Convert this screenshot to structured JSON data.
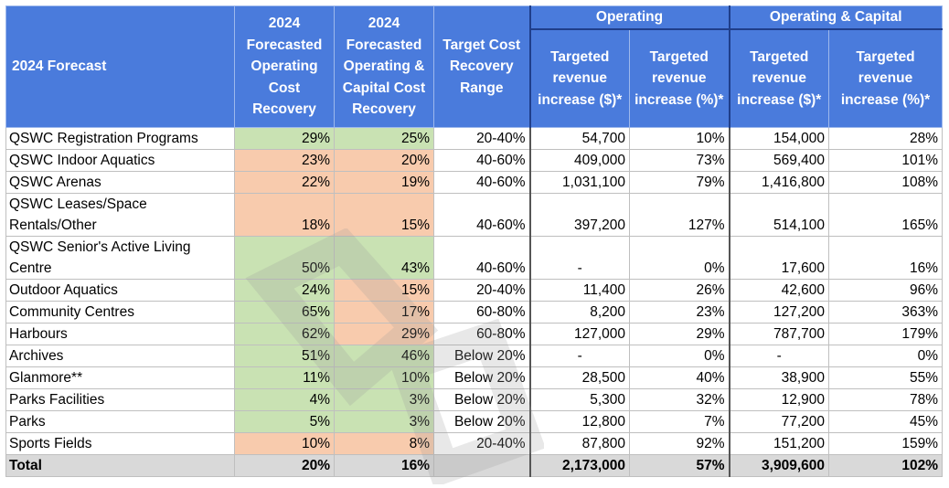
{
  "headers": {
    "forecast": "2024 Forecast",
    "op_cost_recovery": [
      "2024",
      "Forecasted",
      "Operating",
      "Cost",
      "Recovery"
    ],
    "opcap_cost_recovery": [
      "2024",
      "Forecasted",
      "Operating &",
      "Capital Cost",
      "Recovery"
    ],
    "target_range": [
      "Target Cost",
      "Recovery",
      "Range"
    ],
    "group_operating": "Operating",
    "group_opcap": "Operating & Capital",
    "rev_dollar": [
      "Targeted",
      "revenue",
      "increase ($)*"
    ],
    "rev_pct": [
      "Targeted",
      "revenue",
      "increase (%)*"
    ]
  },
  "rows": [
    {
      "name": [
        "QSWC Registration Programs"
      ],
      "op": "29%",
      "op_fill": "green",
      "opcap": "25%",
      "opcap_fill": "green",
      "range": "20-40%",
      "op_rev": "54,700",
      "op_pct": "10%",
      "cap_rev": "154,000",
      "cap_pct": "28%"
    },
    {
      "name": [
        "QSWC Indoor Aquatics"
      ],
      "op": "23%",
      "op_fill": "orange",
      "opcap": "20%",
      "opcap_fill": "orange",
      "range": "40-60%",
      "op_rev": "409,000",
      "op_pct": "73%",
      "cap_rev": "569,400",
      "cap_pct": "101%"
    },
    {
      "name": [
        "QSWC Arenas"
      ],
      "op": "22%",
      "op_fill": "orange",
      "opcap": "19%",
      "opcap_fill": "orange",
      "range": "40-60%",
      "op_rev": "1,031,100",
      "op_pct": "79%",
      "cap_rev": "1,416,800",
      "cap_pct": "108%"
    },
    {
      "name": [
        "QSWC Leases/Space",
        "Rentals/Other"
      ],
      "op": "18%",
      "op_fill": "orange",
      "opcap": "15%",
      "opcap_fill": "orange",
      "range": "40-60%",
      "op_rev": "397,200",
      "op_pct": "127%",
      "cap_rev": "514,100",
      "cap_pct": "165%"
    },
    {
      "name": [
        "QSWC Senior's Active Living",
        "Centre"
      ],
      "op": "50%",
      "op_fill": "green",
      "opcap": "43%",
      "opcap_fill": "green",
      "range": "40-60%",
      "op_rev": "-",
      "op_pct": "0%",
      "cap_rev": "17,600",
      "cap_pct": "16%"
    },
    {
      "name": [
        "Outdoor Aquatics"
      ],
      "op": "24%",
      "op_fill": "green",
      "opcap": "15%",
      "opcap_fill": "orange",
      "range": "20-40%",
      "op_rev": "11,400",
      "op_pct": "26%",
      "cap_rev": "42,600",
      "cap_pct": "96%"
    },
    {
      "name": [
        "Community Centres"
      ],
      "op": "65%",
      "op_fill": "green",
      "opcap": "17%",
      "opcap_fill": "orange",
      "range": "60-80%",
      "op_rev": "8,200",
      "op_pct": "23%",
      "cap_rev": "127,200",
      "cap_pct": "363%"
    },
    {
      "name": [
        "Harbours"
      ],
      "op": "62%",
      "op_fill": "green",
      "opcap": "29%",
      "opcap_fill": "orange",
      "range": "60-80%",
      "op_rev": "127,000",
      "op_pct": "29%",
      "cap_rev": "787,700",
      "cap_pct": "179%"
    },
    {
      "name": [
        "Archives"
      ],
      "op": "51%",
      "op_fill": "green",
      "opcap": "46%",
      "opcap_fill": "green",
      "range": "Below 20%",
      "op_rev": "-",
      "op_pct": "0%",
      "cap_rev": "-",
      "cap_pct": "0%"
    },
    {
      "name": [
        "Glanmore**"
      ],
      "op": "11%",
      "op_fill": "green",
      "opcap": "10%",
      "opcap_fill": "green",
      "range": "Below 20%",
      "op_rev": "28,500",
      "op_pct": "40%",
      "cap_rev": "38,900",
      "cap_pct": "55%"
    },
    {
      "name": [
        "Parks Facilities"
      ],
      "op": "4%",
      "op_fill": "green",
      "opcap": "3%",
      "opcap_fill": "green",
      "range": "Below 20%",
      "op_rev": "5,300",
      "op_pct": "32%",
      "cap_rev": "12,900",
      "cap_pct": "78%"
    },
    {
      "name": [
        "Parks"
      ],
      "op": "5%",
      "op_fill": "green",
      "opcap": "3%",
      "opcap_fill": "green",
      "range": "Below 20%",
      "op_rev": "12,800",
      "op_pct": "7%",
      "cap_rev": "77,200",
      "cap_pct": "45%"
    },
    {
      "name": [
        "Sports Fields"
      ],
      "op": "10%",
      "op_fill": "orange",
      "opcap": "8%",
      "opcap_fill": "orange",
      "range": "20-40%",
      "op_rev": "87,800",
      "op_pct": "92%",
      "cap_rev": "151,200",
      "cap_pct": "159%"
    }
  ],
  "total": {
    "name": "Total",
    "op": "20%",
    "opcap": "16%",
    "range": "",
    "op_rev": "2,173,000",
    "op_pct": "57%",
    "cap_rev": "3,909,600",
    "cap_pct": "102%"
  },
  "colors": {
    "header": "#4a7bdc",
    "green": "#c9e2b3",
    "orange": "#f8cbad",
    "total": "#d9d9d9"
  }
}
